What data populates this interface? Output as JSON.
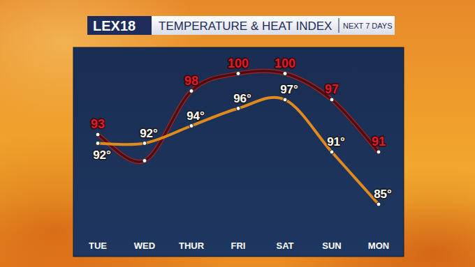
{
  "chart_data": {
    "type": "line",
    "logo": "LEX18",
    "title": "TEMPERATURE & HEAT INDEX",
    "subtitle": "NEXT 7 DAYS",
    "categories": [
      "TUE",
      "WED",
      "THUR",
      "FRI",
      "SAT",
      "SUN",
      "MON"
    ],
    "series": [
      {
        "color": "#4d0d10",
        "marker": "circle",
        "values": [
          93,
          90,
          98,
          100,
          100,
          97,
          91
        ],
        "value_labels": [
          "93",
          null,
          "98",
          "100",
          "100",
          "97",
          "91"
        ]
      },
      {
        "color": "#e08a1e",
        "marker": "circle",
        "values": [
          92,
          92,
          94,
          96,
          97,
          91,
          85
        ],
        "value_labels": [
          "92°",
          "92°",
          "94°",
          "96°",
          "97°",
          "91°",
          "85°"
        ]
      }
    ],
    "ylim": [
      79,
      103
    ],
    "data_labels": true,
    "tick_labels": "x",
    "grid": false
  }
}
